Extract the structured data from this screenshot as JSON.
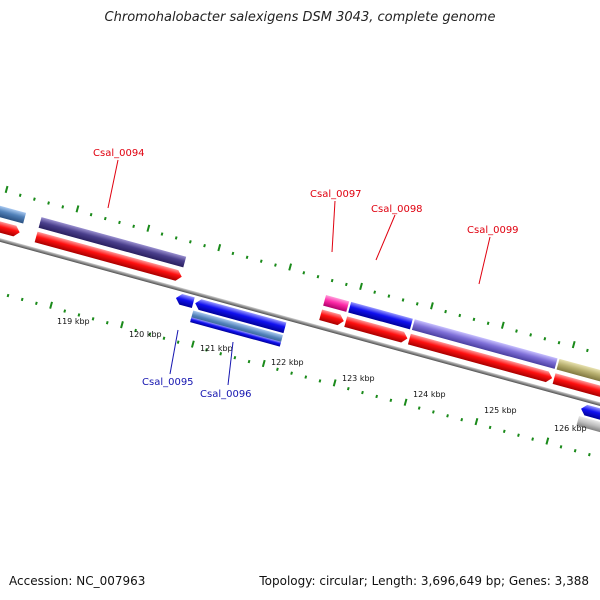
{
  "title": "Chromohalobacter salexigens DSM 3043, complete genome",
  "footer": {
    "accession": "Accession: NC_007963",
    "summary": "Topology: circular; Length: 3,696,649 bp; Genes: 3,388"
  },
  "ticks": [
    "119 kbp",
    "120 kbp",
    "121 kbp",
    "122 kbp",
    "123 kbp",
    "124 kbp",
    "125 kbp",
    "126 kbp"
  ],
  "genes": {
    "csal_0094": {
      "label": "Csal_0094",
      "color": "#e0000f"
    },
    "csal_0095": {
      "label": "Csal_0095",
      "color": "#1515b0"
    },
    "csal_0096": {
      "label": "Csal_0096",
      "color": "#1515b0"
    },
    "csal_0097": {
      "label": "Csal_0097",
      "color": "#e0000f"
    },
    "csal_0098": {
      "label": "Csal_0098",
      "color": "#e0000f"
    },
    "csal_0099": {
      "label": "Csal_0099",
      "color": "#e0000f"
    }
  },
  "colors": {
    "cds_red": "#ff1010",
    "cds_blue": "#1010f0",
    "cog_purple": "#4a3f8c",
    "cog_lavender": "#7f70d8",
    "cog_olive": "#b8b070",
    "cog_steel": "#5080b8",
    "cog_pink": "#ff2aa8",
    "backbone": "#8a8a8a",
    "tick_green": "#1a8a1a"
  }
}
